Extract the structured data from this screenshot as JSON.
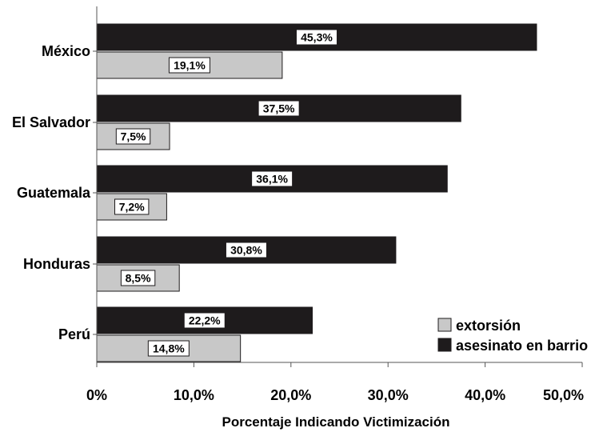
{
  "chart_data": {
    "type": "bar",
    "orientation": "horizontal",
    "categories": [
      "México",
      "El Salvador",
      "Guatemala",
      "Honduras",
      "Perú"
    ],
    "series": [
      {
        "name": "asesinato en barrio",
        "values": [
          45.3,
          37.5,
          36.1,
          30.8,
          22.2
        ],
        "labels": [
          "45,3%",
          "37,5%",
          "36,1%",
          "30,8%",
          "22,2%"
        ],
        "color": "#1e1b1c"
      },
      {
        "name": "extorsión",
        "values": [
          19.1,
          7.5,
          7.2,
          8.5,
          14.8
        ],
        "labels": [
          "19,1%",
          "7,5%",
          "7,2%",
          "8,5%",
          "14,8%"
        ],
        "color": "#c8c8c8"
      }
    ],
    "xlim": [
      0,
      50
    ],
    "xticks": [
      "0%",
      "10,0%",
      "20,0%",
      "30,0%",
      "40,0%",
      "50,0%"
    ],
    "xlabel": "Porcentaje Indicando Victimización",
    "ylabel": "",
    "title": "",
    "grid": false,
    "legend": {
      "position": "bottom-right",
      "entries": [
        "extorsión",
        "asesinato en barrio"
      ]
    }
  }
}
